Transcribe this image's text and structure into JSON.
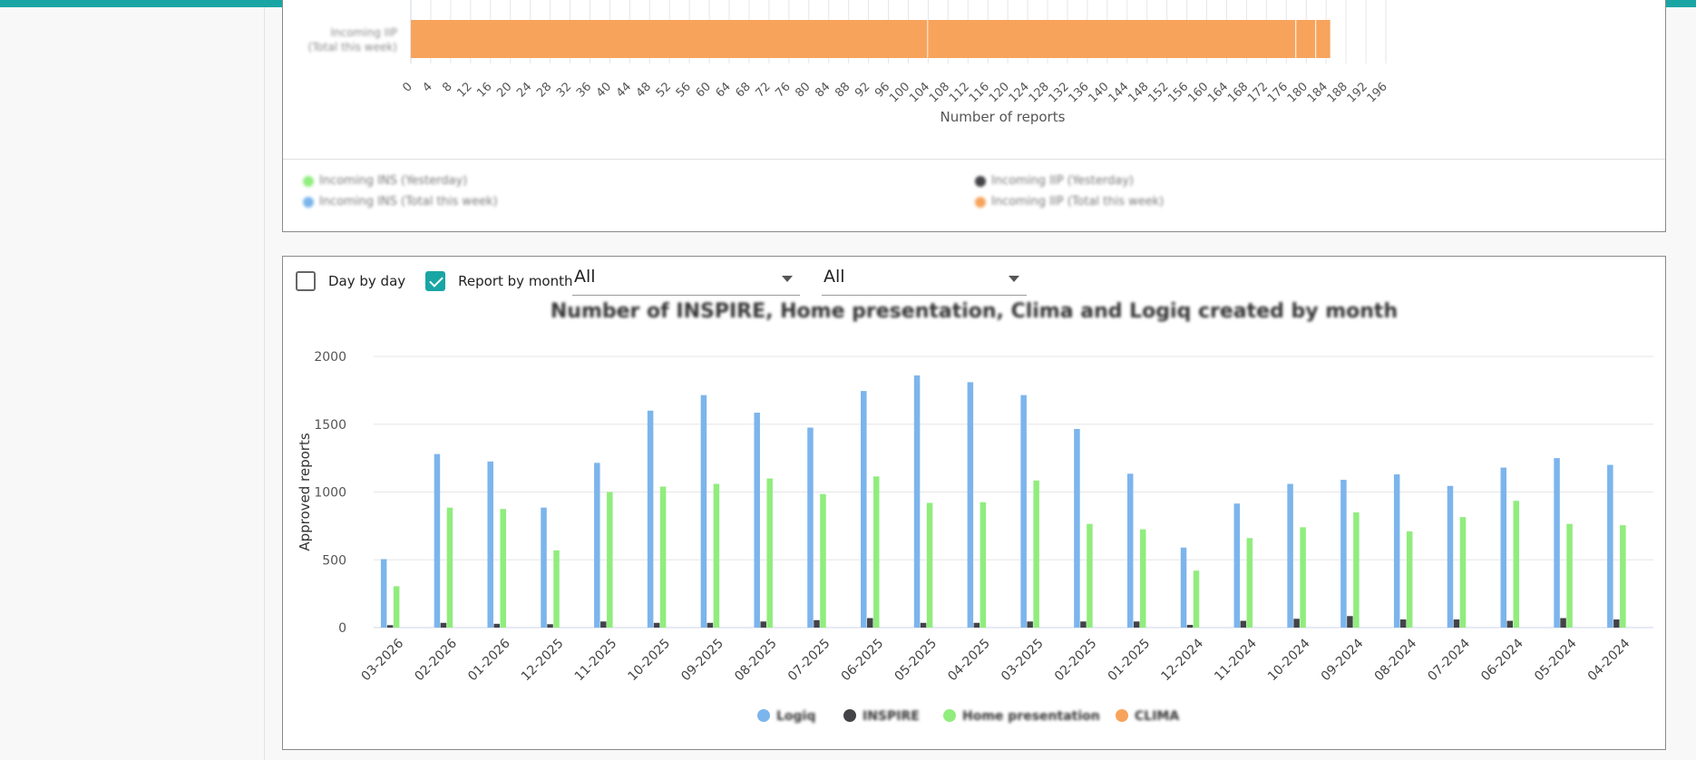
{
  "colors": {
    "accent": "#1aa5a5",
    "logiq": "#7cb5ec",
    "inspire": "#434348",
    "home": "#90ed7d",
    "clima": "#f7a35c"
  },
  "top_chart": {
    "category_label": "Incoming IIP (Total this week)",
    "xlabel": "Number of reports",
    "ticks": [
      "0",
      "4",
      "8",
      "12",
      "16",
      "20",
      "24",
      "28",
      "32",
      "36",
      "40",
      "44",
      "48",
      "52",
      "56",
      "60",
      "64",
      "68",
      "72",
      "76",
      "80",
      "84",
      "88",
      "92",
      "96",
      "100",
      "104",
      "108",
      "112",
      "116",
      "120",
      "124",
      "128",
      "132",
      "136",
      "140",
      "144",
      "148",
      "152",
      "156",
      "160",
      "164",
      "168",
      "172",
      "176",
      "180",
      "184",
      "188",
      "192",
      "196"
    ],
    "legend": [
      {
        "label": "Incoming INS (Yesterday)",
        "color": "#90ed7d"
      },
      {
        "label": "Incoming INS (Total this week)",
        "color": "#7cb5ec"
      },
      {
        "label": "Incoming IIP (Yesterday)",
        "color": "#434348"
      },
      {
        "label": "Incoming IIP (Total this week)",
        "color": "#f7a35c"
      }
    ]
  },
  "controls": {
    "day_by_day": {
      "label": "Day by day",
      "checked": false
    },
    "report_by_month": {
      "label": "Report by month",
      "checked": true
    },
    "filter1": {
      "value": "All"
    },
    "filter2": {
      "value": "All"
    }
  },
  "chart_data": [
    {
      "type": "bar",
      "orientation": "horizontal",
      "stacked": true,
      "categories": [
        "Incoming IIP (Total this week)"
      ],
      "segments": [
        104,
        74,
        4,
        3
      ],
      "xlabel": "Number of reports",
      "xlim": [
        0,
        196
      ],
      "grid": true
    },
    {
      "type": "bar",
      "title": "Number of INSPIRE, Home presentation, Clima and Logiq created by month",
      "xlabel": "",
      "ylabel": "Approved reports",
      "ylim": [
        0,
        2000
      ],
      "yticks": [
        "0",
        "500",
        "1000",
        "1500",
        "2000"
      ],
      "grid": true,
      "legend_position": "bottom",
      "categories": [
        "03-2026",
        "02-2026",
        "01-2026",
        "12-2025",
        "11-2025",
        "10-2025",
        "09-2025",
        "08-2025",
        "07-2025",
        "06-2025",
        "05-2025",
        "04-2025",
        "03-2025",
        "02-2025",
        "01-2025",
        "12-2024",
        "11-2024",
        "10-2024",
        "09-2024",
        "08-2024",
        "07-2024",
        "06-2024",
        "05-2024",
        "04-2024"
      ],
      "series": [
        {
          "name": "Logiq",
          "color": "#7cb5ec",
          "values": [
            505,
            1280,
            1225,
            885,
            1215,
            1600,
            1715,
            1585,
            1475,
            1745,
            1860,
            1810,
            1715,
            1465,
            1135,
            590,
            915,
            1060,
            1090,
            1130,
            1045,
            1180,
            1250,
            1200
          ]
        },
        {
          "name": "INSPIRE",
          "color": "#434348",
          "values": [
            18,
            35,
            28,
            25,
            45,
            35,
            35,
            45,
            55,
            70,
            35,
            35,
            45,
            45,
            45,
            20,
            50,
            65,
            85,
            60,
            60,
            50,
            70,
            60
          ]
        },
        {
          "name": "Home presentation",
          "color": "#90ed7d",
          "values": [
            305,
            885,
            875,
            570,
            1000,
            1040,
            1060,
            1100,
            985,
            1115,
            920,
            925,
            1085,
            765,
            725,
            420,
            660,
            740,
            850,
            710,
            815,
            935,
            765,
            755
          ]
        },
        {
          "name": "CLIMA",
          "color": "#f7a35c",
          "values": [
            0,
            0,
            0,
            0,
            0,
            0,
            0,
            0,
            0,
            0,
            0,
            0,
            0,
            0,
            0,
            0,
            0,
            0,
            0,
            0,
            0,
            0,
            0,
            0
          ]
        }
      ]
    }
  ]
}
